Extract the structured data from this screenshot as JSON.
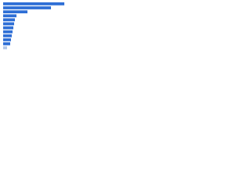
{
  "chart_data": {
    "type": "hbar",
    "categories": [
      null,
      null,
      null,
      null,
      null,
      null,
      null,
      null,
      null,
      null,
      null,
      null
    ],
    "values": [
      78,
      61,
      31,
      17,
      15,
      14,
      13,
      12,
      11,
      10,
      9,
      5
    ],
    "colors": [
      "#2f6fd6",
      "#2f6fd6",
      "#2f6fd6",
      "#2f6fd6",
      "#2f6fd6",
      "#2f6fd6",
      "#2f6fd6",
      "#2f6fd6",
      "#2f6fd6",
      "#2f6fd6",
      "#2f6fd6",
      "#b3c8e8"
    ],
    "xlim": [
      0,
      80
    ]
  }
}
